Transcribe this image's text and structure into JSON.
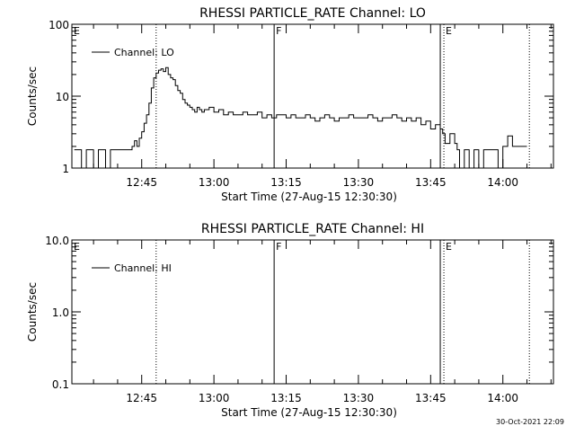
{
  "chart_data": [
    {
      "type": "line",
      "title": "RHESSI PARTICLE_RATE Channel: LO",
      "xlabel": "Start Time (27-Aug-15 12:30:30)",
      "ylabel": "Counts/sec",
      "yscale": "log",
      "ylim": [
        1,
        100
      ],
      "yticks": [
        "1",
        "10",
        "100"
      ],
      "xlim": [
        "12:30:30",
        "14:10:30"
      ],
      "xticks": [
        "12:45",
        "13:00",
        "13:15",
        "13:30",
        "13:45",
        "14:00"
      ],
      "legend": "top-left",
      "series": [
        {
          "name": "Channel: LO",
          "x": [
            "12:31:00",
            "12:32:30",
            "12:33:30",
            "12:35:00",
            "12:36:00",
            "12:37:30",
            "12:38:30",
            "12:40:00",
            "12:41:30",
            "12:43:00",
            "12:43:30",
            "12:44:00",
            "12:44:30",
            "12:45:00",
            "12:45:30",
            "12:46:00",
            "12:46:30",
            "12:47:00",
            "12:47:30",
            "12:48:00",
            "12:48:30",
            "12:49:00",
            "12:49:30",
            "12:50:00",
            "12:50:30",
            "12:51:00",
            "12:51:30",
            "12:52:00",
            "12:52:30",
            "12:53:00",
            "12:53:30",
            "12:54:00",
            "12:54:30",
            "12:55:00",
            "12:55:30",
            "12:56:00",
            "12:56:30",
            "12:57:00",
            "12:57:30",
            "12:58:00",
            "12:59:00",
            "13:00:00",
            "13:01:00",
            "13:02:00",
            "13:03:00",
            "13:04:00",
            "13:05:00",
            "13:06:00",
            "13:07:00",
            "13:08:00",
            "13:09:00",
            "13:10:00",
            "13:11:00",
            "13:12:00",
            "13:13:00",
            "13:14:00",
            "13:15:00",
            "13:16:00",
            "13:17:00",
            "13:18:00",
            "13:19:00",
            "13:20:00",
            "13:21:00",
            "13:22:00",
            "13:23:00",
            "13:24:00",
            "13:25:00",
            "13:26:00",
            "13:27:00",
            "13:28:00",
            "13:29:00",
            "13:30:00",
            "13:31:00",
            "13:32:00",
            "13:33:00",
            "13:34:00",
            "13:35:00",
            "13:36:00",
            "13:37:00",
            "13:38:00",
            "13:39:00",
            "13:40:00",
            "13:41:00",
            "13:42:00",
            "13:43:00",
            "13:44:00",
            "13:45:00",
            "13:46:00",
            "13:47:00",
            "13:47:30",
            "13:48:00",
            "13:49:00",
            "13:50:00",
            "13:50:30",
            "13:51:00",
            "13:52:00",
            "13:53:00",
            "13:54:00",
            "13:55:00",
            "13:56:00",
            "13:57:00",
            "13:58:00",
            "13:59:00",
            "14:00:00",
            "14:01:00",
            "14:02:00",
            "14:03:00",
            "14:04:00",
            "14:05:00"
          ],
          "y": [
            1.8,
            1.0,
            1.8,
            1.0,
            1.8,
            1.0,
            1.8,
            1.8,
            1.8,
            2.0,
            2.4,
            2.0,
            2.6,
            3.2,
            4.2,
            5.5,
            8,
            13,
            18,
            21,
            23,
            24,
            22,
            25,
            20,
            18,
            17,
            14,
            12,
            11,
            9,
            8,
            7.5,
            7,
            6.5,
            6,
            7,
            6.5,
            6,
            6.5,
            7,
            6,
            6.5,
            5.5,
            6,
            5.5,
            5.5,
            6,
            5.5,
            5.5,
            6,
            5,
            5.5,
            5,
            5.5,
            5.5,
            5,
            5.5,
            5,
            5,
            5.5,
            5,
            4.5,
            5,
            5.5,
            5,
            4.5,
            5,
            5,
            5.5,
            5,
            5,
            5,
            5.5,
            5,
            4.5,
            5,
            5,
            5.5,
            5,
            4.5,
            5,
            4.5,
            5,
            4,
            4.5,
            3.5,
            4,
            3.5,
            3,
            2.2,
            3,
            2.2,
            1.8,
            1.0,
            1.8,
            1.0,
            1.8,
            1.0,
            1.8,
            1.8,
            1.8,
            1.0,
            2.0,
            2.8,
            2.0,
            2.0,
            2.0,
            2.0
          ]
        }
      ],
      "markers": [
        {
          "label": "E",
          "time": "12:30:30",
          "style": "dotted"
        },
        {
          "label": "",
          "time": "12:48:00",
          "style": "dotted"
        },
        {
          "label": "F",
          "time": "13:12:30",
          "style": "solid"
        },
        {
          "label": "",
          "time": "13:47:00",
          "style": "solid"
        },
        {
          "label": "E",
          "time": "13:47:45",
          "style": "dotted"
        },
        {
          "label": "",
          "time": "14:05:30",
          "style": "dotted"
        }
      ]
    },
    {
      "type": "line",
      "title": "RHESSI PARTICLE_RATE Channel: HI",
      "xlabel": "Start Time (27-Aug-15 12:30:30)",
      "ylabel": "Counts/sec",
      "yscale": "log",
      "ylim": [
        0.1,
        10
      ],
      "yticks": [
        "0.1",
        "1.0",
        "10.0"
      ],
      "xlim": [
        "12:30:30",
        "14:10:30"
      ],
      "xticks": [
        "12:45",
        "13:00",
        "13:15",
        "13:30",
        "13:45",
        "14:00"
      ],
      "legend": "top-left",
      "series": [
        {
          "name": "Channel: HI",
          "x": [],
          "y": []
        }
      ],
      "markers": [
        {
          "label": "E",
          "time": "12:30:30",
          "style": "dotted"
        },
        {
          "label": "",
          "time": "12:48:00",
          "style": "dotted"
        },
        {
          "label": "F",
          "time": "13:12:30",
          "style": "solid"
        },
        {
          "label": "",
          "time": "13:47:00",
          "style": "solid"
        },
        {
          "label": "E",
          "time": "13:47:45",
          "style": "dotted"
        },
        {
          "label": "",
          "time": "14:05:30",
          "style": "dotted"
        }
      ]
    }
  ],
  "footer": {
    "timestamp": "30-Oct-2021 22:09"
  }
}
